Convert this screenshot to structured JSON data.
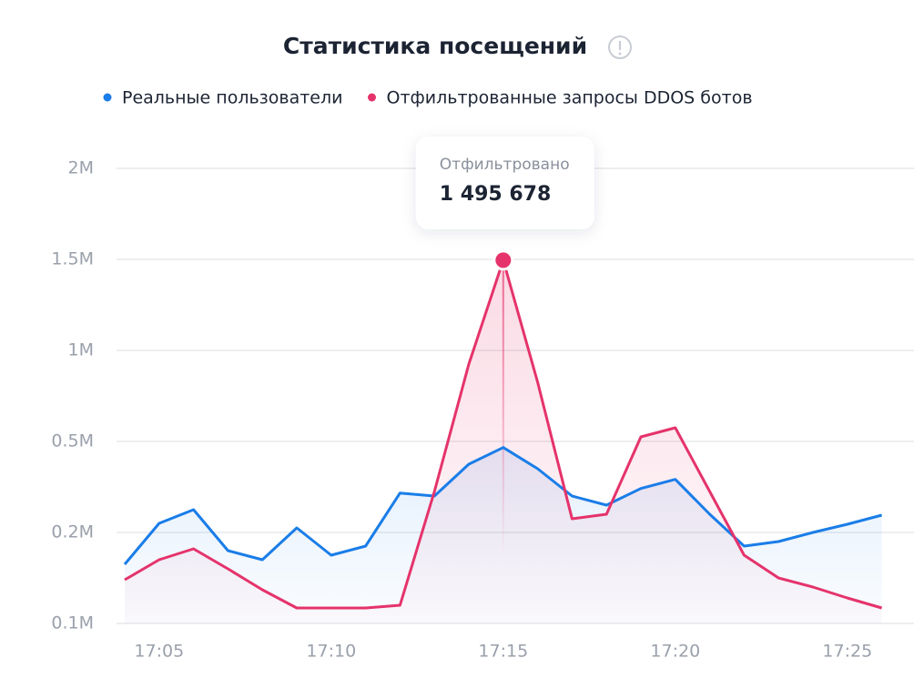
{
  "chart_data": {
    "type": "line",
    "title": "Статистика посещений",
    "categories": [
      null,
      "17:05",
      null,
      null,
      null,
      null,
      "17:10",
      null,
      null,
      null,
      null,
      "17:15",
      null,
      null,
      null,
      null,
      "17:20",
      null,
      null,
      null,
      null,
      "17:25",
      null
    ],
    "series": [
      {
        "name": "Реальные пользователи",
        "color": "#1a7de8",
        "values": [
          165000,
          230000,
          275000,
          180000,
          170000,
          215000,
          175000,
          185000,
          330000,
          320000,
          425000,
          480000,
          410000,
          320000,
          290000,
          345000,
          375000,
          260000,
          185000,
          190000,
          200000,
          227000,
          257000
        ]
      },
      {
        "name": "Отфильтрованные запросы DDOS ботов",
        "color": "#e5336b",
        "values": [
          148000,
          170000,
          182000,
          160000,
          137000,
          117000,
          117000,
          117000,
          120000,
          335000,
          925000,
          1495678,
          825000,
          245000,
          260000,
          525000,
          575000,
          335000,
          175000,
          150000,
          140000,
          128000,
          117000
        ]
      }
    ],
    "scale": "piecewise",
    "ylim": [
      100000,
      2000000
    ],
    "yticks": [
      {
        "value": 100000,
        "label": "0.1M"
      },
      {
        "value": 200000,
        "label": "0.2M"
      },
      {
        "value": 500000,
        "label": "0.5M"
      },
      {
        "value": 1000000,
        "label": "1M"
      },
      {
        "value": 1500000,
        "label": "1.5M"
      },
      {
        "value": 2000000,
        "label": "2M"
      }
    ],
    "grid": true,
    "tooltip": {
      "title": "Отфильтровано",
      "value": 1495678,
      "value_label": "1 495 678"
    }
  }
}
